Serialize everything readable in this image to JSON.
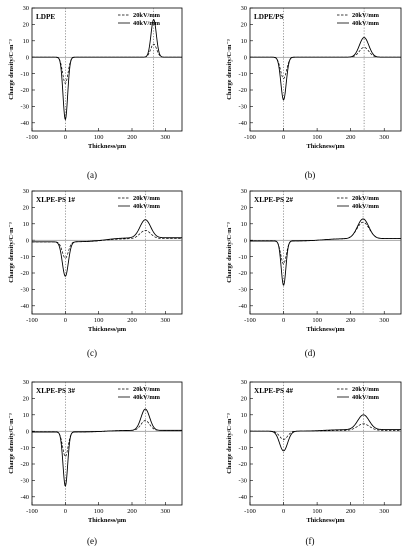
{
  "chart_data": [
    {
      "type": "line",
      "panel_label": "LDPE",
      "caption": "(a)",
      "xlabel": "Thickness/μm",
      "ylabel": "Charge density/C·m⁻³",
      "xlim": [
        -100,
        350
      ],
      "ylim": [
        -45,
        30
      ],
      "xticks": [
        -100,
        0,
        100,
        200,
        300
      ],
      "yticks": [
        30,
        20,
        10,
        0,
        -10,
        -20,
        -30,
        -40
      ],
      "vlines": [
        0,
        265
      ],
      "legend_position": "top-right",
      "series": [
        {
          "name": "20kV/mm",
          "dash": true,
          "baseline_left": 0,
          "baseline_right": 0,
          "peaks": [
            {
              "x": 0,
              "amp": -16,
              "sigma": 8
            },
            {
              "x": 265,
              "amp": 8,
              "sigma": 9
            }
          ]
        },
        {
          "name": "40kV/mm",
          "dash": false,
          "baseline_left": 0,
          "baseline_right": 0,
          "peaks": [
            {
              "x": 0,
              "amp": -38,
              "sigma": 7
            },
            {
              "x": 265,
              "amp": 23,
              "sigma": 8
            }
          ]
        }
      ]
    },
    {
      "type": "line",
      "panel_label": "LDPE/PS",
      "caption": "(b)",
      "xlabel": "Thickness/μm",
      "ylabel": "Charge density/C·m⁻³",
      "xlim": [
        -100,
        350
      ],
      "ylim": [
        -45,
        30
      ],
      "xticks": [
        -100,
        0,
        100,
        200,
        300
      ],
      "yticks": [
        30,
        20,
        10,
        0,
        -10,
        -20,
        -30,
        -40
      ],
      "vlines": [
        0,
        240
      ],
      "legend_position": "top-right",
      "series": [
        {
          "name": "20kV/mm",
          "dash": true,
          "baseline_left": 0,
          "baseline_right": 0,
          "peaks": [
            {
              "x": 0,
              "amp": -13,
              "sigma": 9
            },
            {
              "x": 240,
              "amp": 6,
              "sigma": 14
            }
          ]
        },
        {
          "name": "40kV/mm",
          "dash": false,
          "baseline_left": 0,
          "baseline_right": 0,
          "peaks": [
            {
              "x": 0,
              "amp": -26,
              "sigma": 8
            },
            {
              "x": 240,
              "amp": 12,
              "sigma": 14
            }
          ]
        }
      ]
    },
    {
      "type": "line",
      "panel_label": "XLPE-PS 1#",
      "caption": "(c)",
      "xlabel": "Thickness/μm",
      "ylabel": "Charge density/C·m⁻³",
      "xlim": [
        -100,
        350
      ],
      "ylim": [
        -45,
        30
      ],
      "xticks": [
        -100,
        0,
        100,
        200,
        300
      ],
      "yticks": [
        30,
        20,
        10,
        0,
        -10,
        -20,
        -30,
        -40
      ],
      "vlines": [
        0,
        240
      ],
      "legend_position": "top-right",
      "series": [
        {
          "name": "20kV/mm",
          "dash": true,
          "baseline_left": -1,
          "baseline_right": 1,
          "peaks": [
            {
              "x": 0,
              "amp": -10,
              "sigma": 9
            },
            {
              "x": 240,
              "amp": 5,
              "sigma": 16
            }
          ]
        },
        {
          "name": "40kV/mm",
          "dash": false,
          "baseline_left": -1,
          "baseline_right": 1.5,
          "peaks": [
            {
              "x": 0,
              "amp": -21,
              "sigma": 9
            },
            {
              "x": 240,
              "amp": 11,
              "sigma": 16
            }
          ]
        }
      ]
    },
    {
      "type": "line",
      "panel_label": "XLPE-PS 2#",
      "caption": "(d)",
      "xlabel": "Thickness/μm",
      "ylabel": "Charge density/C·m⁻³",
      "xlim": [
        -100,
        350
      ],
      "ylim": [
        -45,
        30
      ],
      "xticks": [
        -100,
        0,
        100,
        200,
        300
      ],
      "yticks": [
        30,
        20,
        10,
        0,
        -10,
        -20,
        -30,
        -40
      ],
      "vlines": [
        0,
        237
      ],
      "legend_position": "top-right",
      "series": [
        {
          "name": "20kV/mm",
          "dash": true,
          "baseline_left": -0.5,
          "baseline_right": 1,
          "peaks": [
            {
              "x": 0,
              "amp": -14,
              "sigma": 8
            },
            {
              "x": 237,
              "amp": 10,
              "sigma": 18
            }
          ]
        },
        {
          "name": "40kV/mm",
          "dash": false,
          "baseline_left": -0.5,
          "baseline_right": 1,
          "peaks": [
            {
              "x": 0,
              "amp": -27,
              "sigma": 7
            },
            {
              "x": 237,
              "amp": 12,
              "sigma": 17
            }
          ]
        }
      ]
    },
    {
      "type": "line",
      "panel_label": "XLPE-PS 3#",
      "caption": "(e)",
      "xlabel": "Thickness/μm",
      "ylabel": "Charge density/C·m⁻³",
      "xlim": [
        -100,
        350
      ],
      "ylim": [
        -45,
        30
      ],
      "xticks": [
        -100,
        0,
        100,
        200,
        300
      ],
      "yticks": [
        30,
        20,
        10,
        0,
        -10,
        -20,
        -30,
        -40
      ],
      "vlines": [
        0,
        240
      ],
      "legend_position": "top-right",
      "series": [
        {
          "name": "20kV/mm",
          "dash": true,
          "baseline_left": -0.5,
          "baseline_right": 0.5,
          "peaks": [
            {
              "x": 0,
              "amp": -15,
              "sigma": 8
            },
            {
              "x": 240,
              "amp": 6,
              "sigma": 13
            }
          ]
        },
        {
          "name": "40kV/mm",
          "dash": false,
          "baseline_left": -0.5,
          "baseline_right": 0.5,
          "peaks": [
            {
              "x": 0,
              "amp": -33,
              "sigma": 7
            },
            {
              "x": 240,
              "amp": 13,
              "sigma": 13
            }
          ]
        }
      ]
    },
    {
      "type": "line",
      "panel_label": "XLPE-PS 4#",
      "caption": "(f)",
      "xlabel": "Thickness/μm",
      "ylabel": "Charge density/C·m⁻³",
      "xlim": [
        -100,
        350
      ],
      "ylim": [
        -45,
        30
      ],
      "xticks": [
        -100,
        0,
        100,
        200,
        300
      ],
      "yticks": [
        30,
        20,
        10,
        0,
        -10,
        -20,
        -30,
        -40
      ],
      "vlines": [
        0,
        238
      ],
      "legend_position": "top-right",
      "series": [
        {
          "name": "20kV/mm",
          "dash": true,
          "baseline_left": 0,
          "baseline_right": 0.5,
          "peaks": [
            {
              "x": 0,
              "amp": -5,
              "sigma": 12
            },
            {
              "x": 238,
              "amp": 4,
              "sigma": 18
            }
          ]
        },
        {
          "name": "40kV/mm",
          "dash": false,
          "baseline_left": 0,
          "baseline_right": 1,
          "peaks": [
            {
              "x": 0,
              "amp": -12,
              "sigma": 12
            },
            {
              "x": 238,
              "amp": 9,
              "sigma": 17
            }
          ]
        }
      ]
    }
  ]
}
